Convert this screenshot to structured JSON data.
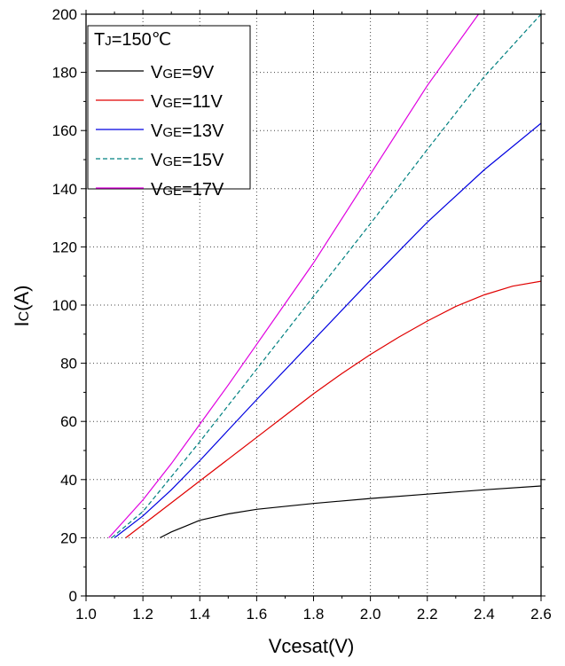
{
  "chart_data": {
    "type": "line",
    "title": "",
    "xlabel": "Vcesat(V)",
    "ylabel_main": "I",
    "ylabel_sub": "C",
    "ylabel_unit": "(A)",
    "xlim": [
      1.0,
      2.6
    ],
    "ylim": [
      0,
      200
    ],
    "xticks": [
      1.0,
      1.2,
      1.4,
      1.6,
      1.8,
      2.0,
      2.2,
      2.4,
      2.6
    ],
    "xtick_labels": [
      "1.0",
      "1.2",
      "1.4",
      "1.6",
      "1.8",
      "2.0",
      "2.2",
      "2.4",
      "2.6"
    ],
    "yticks": [
      0,
      20,
      40,
      60,
      80,
      100,
      120,
      140,
      160,
      180,
      200
    ],
    "ytick_labels": [
      "0",
      "20",
      "40",
      "60",
      "80",
      "100",
      "120",
      "140",
      "160",
      "180",
      "200"
    ],
    "grid": true,
    "legend_position": "top-left",
    "legend_title": {
      "main": "T",
      "sub": "J",
      "rest": "=150℃"
    },
    "series": [
      {
        "name": "VGE=9V",
        "label_main": "V",
        "label_sub": "GE",
        "label_rest": "=9V",
        "color": "#000000",
        "dash": "solid",
        "x": [
          1.26,
          1.3,
          1.35,
          1.4,
          1.5,
          1.6,
          1.8,
          2.0,
          2.2,
          2.4,
          2.6
        ],
        "y": [
          20,
          22,
          24,
          26,
          28.2,
          29.8,
          31.8,
          33.5,
          35.0,
          36.5,
          37.8
        ]
      },
      {
        "name": "VGE=11V",
        "label_main": "V",
        "label_sub": "GE",
        "label_rest": "=11V",
        "color": "#e00000",
        "dash": "solid",
        "x": [
          1.14,
          1.2,
          1.3,
          1.4,
          1.5,
          1.6,
          1.7,
          1.8,
          1.9,
          2.0,
          2.1,
          2.2,
          2.3,
          2.4,
          2.5,
          2.6
        ],
        "y": [
          20,
          24.5,
          32,
          39.5,
          47,
          54.5,
          62,
          69.5,
          76.5,
          83,
          89,
          94.5,
          99.5,
          103.5,
          106.5,
          108.2
        ]
      },
      {
        "name": "VGE=13V",
        "label_main": "V",
        "label_sub": "GE",
        "label_rest": "=13V",
        "color": "#0000e0",
        "dash": "solid",
        "x": [
          1.1,
          1.2,
          1.3,
          1.4,
          1.5,
          1.6,
          1.8,
          2.0,
          2.2,
          2.4,
          2.6
        ],
        "y": [
          20,
          27.5,
          36.5,
          46.5,
          57,
          67.5,
          88,
          108.5,
          128.5,
          146.5,
          162.5
        ]
      },
      {
        "name": "VGE=15V",
        "label_main": "V",
        "label_sub": "GE",
        "label_rest": "=15V",
        "color": "#008080",
        "dash": "dashed",
        "x": [
          1.09,
          1.2,
          1.3,
          1.4,
          1.5,
          1.6,
          1.8,
          2.0,
          2.2,
          2.4,
          2.6
        ],
        "y": [
          20,
          29,
          41,
          53,
          65.5,
          78,
          103,
          128,
          153.5,
          178.5,
          200
        ]
      },
      {
        "name": "VGE=17V",
        "label_main": "V",
        "label_sub": "GE",
        "label_rest": "=17V",
        "color": "#e000e0",
        "dash": "solid",
        "x": [
          1.08,
          1.2,
          1.3,
          1.4,
          1.5,
          1.6,
          1.8,
          2.0,
          2.2,
          2.38
        ],
        "y": [
          20,
          33,
          45.5,
          59,
          72.5,
          86.5,
          114.5,
          145,
          175.5,
          200
        ]
      }
    ]
  }
}
